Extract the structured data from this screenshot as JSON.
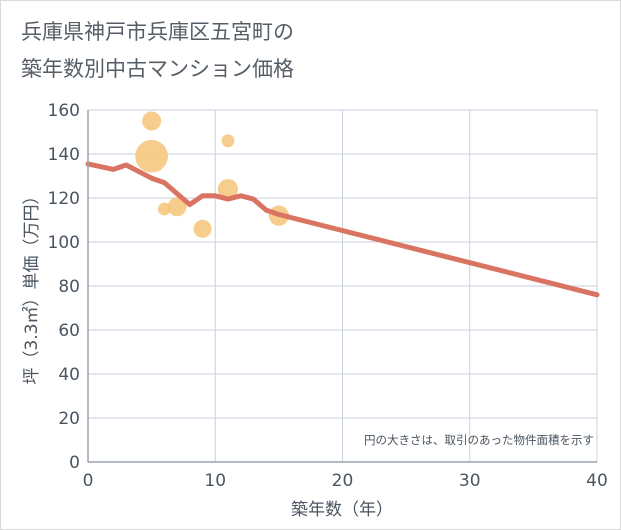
{
  "chart_data": {
    "type": "scatter",
    "title": "兵庫県神戸市兵庫区五宮町の築年数別中古マンション価格",
    "title_lines": [
      "兵庫県神戸市兵庫区五宮町の",
      "築年数別中古マンション価格"
    ],
    "xlabel": "築年数（年）",
    "ylabel": "坪（3.3㎡）単価（万円）",
    "xlim": [
      0,
      40
    ],
    "ylim": [
      0,
      160
    ],
    "x_ticks": [
      0,
      10,
      20,
      30,
      40
    ],
    "y_ticks": [
      0,
      20,
      40,
      60,
      80,
      100,
      120,
      140,
      160
    ],
    "grid": true,
    "annotation": "円の大きさは、取引のあった物件面積を示す",
    "colors": {
      "bubble": "#f5c479",
      "line": "#d97362",
      "grid": "#c8d2de",
      "axis": "#9aa4ae"
    },
    "series": [
      {
        "name": "取引",
        "type": "scatter",
        "points": [
          {
            "x": 5,
            "y": 155,
            "size": 2.2
          },
          {
            "x": 5,
            "y": 139,
            "size": 6.5
          },
          {
            "x": 6,
            "y": 115,
            "size": 1.0
          },
          {
            "x": 7,
            "y": 116,
            "size": 2.2
          },
          {
            "x": 9,
            "y": 106,
            "size": 2.0
          },
          {
            "x": 11,
            "y": 146,
            "size": 1.0
          },
          {
            "x": 11,
            "y": 124,
            "size": 2.5
          },
          {
            "x": 15,
            "y": 112,
            "size": 2.5
          }
        ]
      },
      {
        "name": "トレンド",
        "type": "line",
        "x": [
          0,
          2,
          3,
          5,
          6,
          8,
          9,
          10,
          11,
          12,
          13,
          14,
          15,
          40
        ],
        "y": [
          135.5,
          133,
          135,
          129,
          127,
          117,
          121,
          121,
          119.5,
          121,
          119.5,
          114.5,
          112.5,
          76
        ]
      }
    ]
  }
}
